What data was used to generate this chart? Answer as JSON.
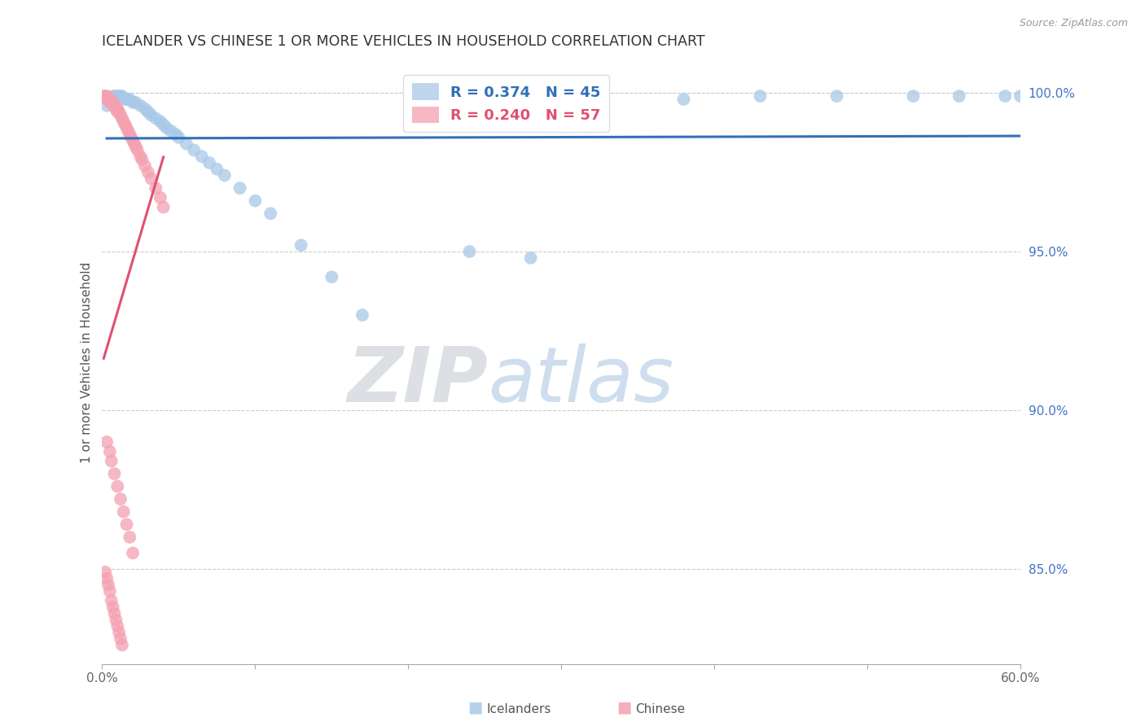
{
  "title": "ICELANDER VS CHINESE 1 OR MORE VEHICLES IN HOUSEHOLD CORRELATION CHART",
  "source": "Source: ZipAtlas.com",
  "ylabel": "1 or more Vehicles in Household",
  "xlim": [
    0.0,
    0.6
  ],
  "ylim": [
    0.82,
    1.01
  ],
  "xticks": [
    0.0,
    0.1,
    0.2,
    0.3,
    0.4,
    0.5,
    0.6
  ],
  "xticklabels": [
    "0.0%",
    "",
    "",
    "",
    "",
    "",
    "60.0%"
  ],
  "yticks": [
    0.85,
    0.9,
    0.95,
    1.0
  ],
  "yticklabels": [
    "85.0%",
    "90.0%",
    "95.0%",
    "100.0%"
  ],
  "blue_color": "#a8c8e8",
  "pink_color": "#f4a0b0",
  "blue_line_color": "#3070b8",
  "pink_line_color": "#e05070",
  "legend_blue_R": "0.374",
  "legend_blue_N": "45",
  "legend_pink_R": "0.240",
  "legend_pink_N": "57",
  "watermark_zip": "ZIP",
  "watermark_atlas": "atlas",
  "blue_points_x": [
    0.003,
    0.005,
    0.007,
    0.009,
    0.01,
    0.011,
    0.012,
    0.013,
    0.015,
    0.016,
    0.018,
    0.02,
    0.022,
    0.025,
    0.028,
    0.03,
    0.032,
    0.035,
    0.038,
    0.04,
    0.042,
    0.045,
    0.048,
    0.05,
    0.055,
    0.06,
    0.065,
    0.07,
    0.075,
    0.08,
    0.09,
    0.1,
    0.11,
    0.13,
    0.15,
    0.17,
    0.24,
    0.28,
    0.38,
    0.43,
    0.48,
    0.53,
    0.56,
    0.59,
    0.6
  ],
  "blue_points_y": [
    0.996,
    0.998,
    0.999,
    0.999,
    0.999,
    0.999,
    0.999,
    0.999,
    0.998,
    0.998,
    0.998,
    0.997,
    0.997,
    0.996,
    0.995,
    0.994,
    0.993,
    0.992,
    0.991,
    0.99,
    0.989,
    0.988,
    0.987,
    0.986,
    0.984,
    0.982,
    0.98,
    0.978,
    0.976,
    0.974,
    0.97,
    0.966,
    0.962,
    0.952,
    0.942,
    0.93,
    0.95,
    0.948,
    0.998,
    0.999,
    0.999,
    0.999,
    0.999,
    0.999,
    0.999
  ],
  "pink_points_x": [
    0.001,
    0.002,
    0.003,
    0.003,
    0.004,
    0.005,
    0.005,
    0.006,
    0.007,
    0.007,
    0.008,
    0.009,
    0.01,
    0.01,
    0.011,
    0.012,
    0.013,
    0.014,
    0.015,
    0.016,
    0.017,
    0.018,
    0.019,
    0.02,
    0.021,
    0.022,
    0.023,
    0.025,
    0.026,
    0.028,
    0.03,
    0.032,
    0.035,
    0.038,
    0.04,
    0.003,
    0.005,
    0.006,
    0.008,
    0.01,
    0.012,
    0.014,
    0.016,
    0.018,
    0.02,
    0.002,
    0.003,
    0.004,
    0.005,
    0.006,
    0.007,
    0.008,
    0.009,
    0.01,
    0.011,
    0.012,
    0.013
  ],
  "pink_points_y": [
    0.999,
    0.999,
    0.999,
    0.998,
    0.998,
    0.998,
    0.997,
    0.997,
    0.997,
    0.996,
    0.996,
    0.995,
    0.995,
    0.994,
    0.994,
    0.993,
    0.992,
    0.991,
    0.99,
    0.989,
    0.988,
    0.987,
    0.986,
    0.985,
    0.984,
    0.983,
    0.982,
    0.98,
    0.979,
    0.977,
    0.975,
    0.973,
    0.97,
    0.967,
    0.964,
    0.89,
    0.887,
    0.884,
    0.88,
    0.876,
    0.872,
    0.868,
    0.864,
    0.86,
    0.855,
    0.849,
    0.847,
    0.845,
    0.843,
    0.84,
    0.838,
    0.836,
    0.834,
    0.832,
    0.83,
    0.828,
    0.826
  ]
}
